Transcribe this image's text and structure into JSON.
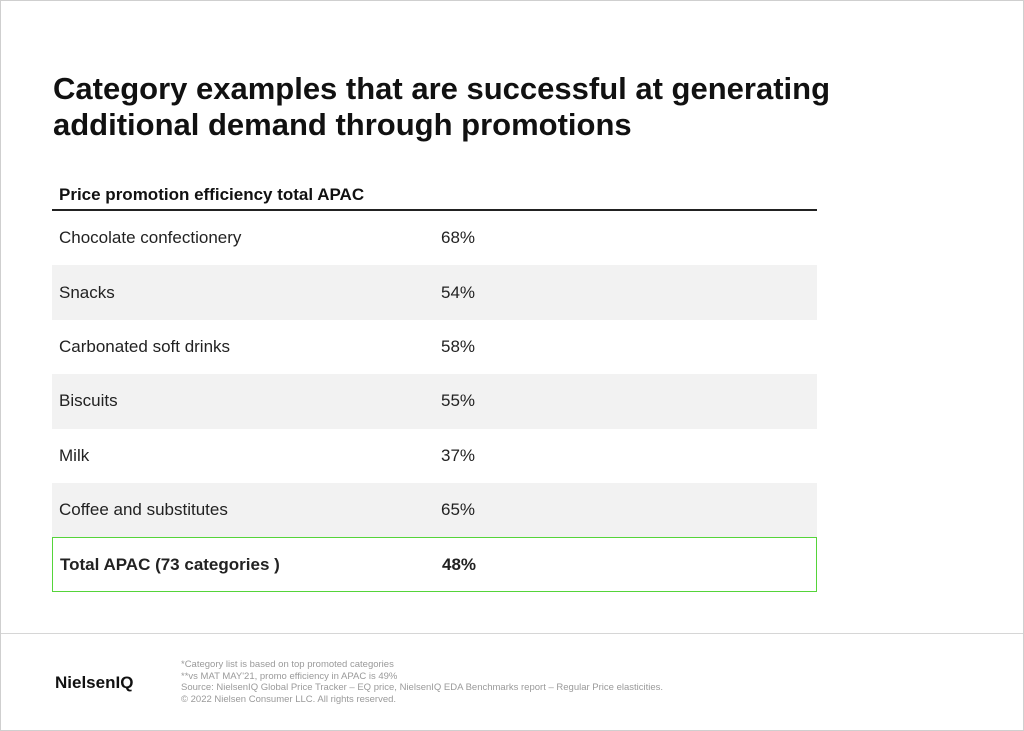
{
  "header": {
    "title": "Category examples that are successful at generating additional demand through promotions"
  },
  "table": {
    "heading": "Price promotion efficiency total APAC",
    "rows": [
      [
        "Chocolate confectionery",
        "68%"
      ],
      [
        "Snacks",
        "54%"
      ],
      [
        "Carbonated soft drinks",
        "58%"
      ],
      [
        "Biscuits",
        "55%"
      ],
      [
        "Milk",
        "37%"
      ],
      [
        "Coffee and substitutes",
        "65%"
      ]
    ],
    "total": [
      "Total APAC (73 categories )",
      "48%"
    ]
  },
  "footer": {
    "logo": "NielsenIQ",
    "notes": [
      "*Category list is based on top promoted categories",
      "**vs MAT MAY'21, promo efficiency in APAC is 49%",
      "Source: NielsenIQ Global Price Tracker – EQ price, NielsenIQ EDA Benchmarks report – Regular Price elasticities.",
      "© 2022 Nielsen Consumer LLC. All rights reserved."
    ]
  }
}
